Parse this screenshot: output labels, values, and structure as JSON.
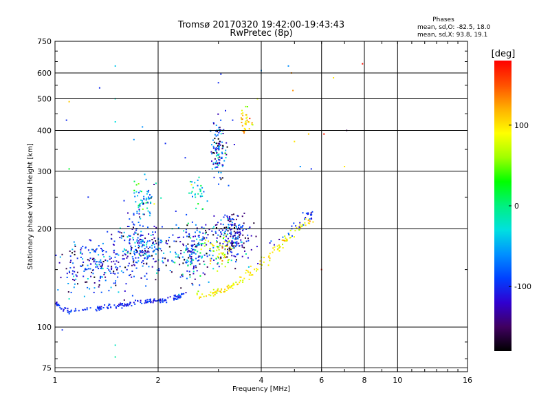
{
  "chart_data": {
    "type": "scatter",
    "title": "Tromsø 20170320 19:42:00-19:43:43",
    "subtitle": "RwPretec (8p)",
    "xlabel": "Frequency [MHz]",
    "ylabel": "Stationary phase Virtual Height [km]",
    "x_scale": "log",
    "y_scale": "log",
    "xlim": [
      1,
      16
    ],
    "ylim": [
      73,
      750
    ],
    "x_ticks": [
      1,
      2,
      4,
      6,
      8,
      10,
      16
    ],
    "x_tick_labels": [
      "1",
      "2",
      "4",
      "6",
      "8",
      "10",
      "16"
    ],
    "y_ticks": [
      75,
      100,
      200,
      300,
      400,
      500,
      600,
      750
    ],
    "y_tick_labels": [
      "75",
      "100",
      "200",
      "300",
      "400",
      "500",
      "600",
      "750"
    ],
    "grid": true,
    "stats": {
      "heading": "Phases",
      "line_o": "mean, sd,O: -82.5, 18.0",
      "line_x": "mean, sd,X:  93.8, 19.1"
    },
    "colorbar": {
      "label": "[deg]",
      "range": [
        -180,
        180
      ],
      "ticks": [
        100,
        0,
        -100
      ],
      "tick_labels": [
        "100",
        "0",
        "-100"
      ],
      "colors": [
        "#000000",
        "#400060",
        "#3000d0",
        "#0040ff",
        "#0090ff",
        "#00e0e0",
        "#00f080",
        "#00ff00",
        "#a0ff00",
        "#ffff00",
        "#ffb000",
        "#ff5000",
        "#ff0000"
      ]
    },
    "clusters": [
      {
        "name": "o-trace",
        "points": [
          [
            1.0,
            118
          ],
          [
            1.05,
            114
          ],
          [
            1.1,
            112
          ],
          [
            1.2,
            113
          ],
          [
            1.3,
            114
          ],
          [
            1.4,
            115
          ],
          [
            1.5,
            116
          ],
          [
            1.6,
            117
          ],
          [
            1.7,
            118
          ],
          [
            1.8,
            119
          ],
          [
            1.9,
            120
          ],
          [
            2.0,
            121
          ],
          [
            2.1,
            121
          ],
          [
            2.2,
            122
          ],
          [
            2.3,
            124
          ],
          [
            2.4,
            126
          ]
        ],
        "spread_x": 0.01,
        "spread_y": 0.008,
        "count": 170,
        "phase": -100,
        "phase_sd": 12
      },
      {
        "name": "x-trace",
        "points": [
          [
            2.6,
            124
          ],
          [
            2.8,
            126
          ],
          [
            3.0,
            128
          ],
          [
            3.2,
            132
          ],
          [
            3.4,
            136
          ],
          [
            3.6,
            142
          ],
          [
            3.8,
            148
          ],
          [
            4.0,
            155
          ],
          [
            4.3,
            165
          ],
          [
            4.6,
            180
          ],
          [
            5.0,
            195
          ],
          [
            5.3,
            205
          ],
          [
            5.6,
            215
          ]
        ],
        "spread_x": 0.012,
        "spread_y": 0.015,
        "count": 140,
        "phase": 95,
        "phase_sd": 15
      },
      {
        "name": "o-upper",
        "points": [
          [
            4.2,
            175
          ],
          [
            4.6,
            190
          ],
          [
            5.0,
            205
          ],
          [
            5.4,
            215
          ],
          [
            5.6,
            220
          ]
        ],
        "spread_x": 0.012,
        "spread_y": 0.02,
        "count": 30,
        "phase": -100,
        "phase_sd": 20
      },
      {
        "name": "spread-a",
        "points": [
          [
            1.3,
            155
          ]
        ],
        "spread_x": 0.14,
        "spread_y": 0.1,
        "count": 220,
        "phase": -100,
        "phase_sd": 40
      },
      {
        "name": "spread-b",
        "points": [
          [
            1.8,
            175
          ]
        ],
        "spread_x": 0.08,
        "spread_y": 0.09,
        "count": 230,
        "phase": -95,
        "phase_sd": 45
      },
      {
        "name": "spread-c",
        "points": [
          [
            1.8,
            245
          ]
        ],
        "spread_x": 0.05,
        "spread_y": 0.07,
        "count": 70,
        "phase": -60,
        "phase_sd": 50
      },
      {
        "name": "spread-d",
        "points": [
          [
            2.5,
            170
          ]
        ],
        "spread_x": 0.07,
        "spread_y": 0.1,
        "count": 200,
        "phase": -90,
        "phase_sd": 50
      },
      {
        "name": "spread-e",
        "points": [
          [
            3.3,
            190
          ]
        ],
        "spread_x": 0.06,
        "spread_y": 0.09,
        "count": 220,
        "phase": -110,
        "phase_sd": 45
      },
      {
        "name": "spread-f",
        "points": [
          [
            3.0,
            350
          ]
        ],
        "spread_x": 0.03,
        "spread_y": 0.1,
        "count": 120,
        "phase": -100,
        "phase_sd": 45
      },
      {
        "name": "spread-g",
        "points": [
          [
            2.6,
            260
          ]
        ],
        "spread_x": 0.04,
        "spread_y": 0.04,
        "count": 30,
        "phase": -40,
        "phase_sd": 40
      },
      {
        "name": "x-spread",
        "points": [
          [
            3.0,
            170
          ]
        ],
        "spread_x": 0.05,
        "spread_y": 0.06,
        "count": 60,
        "phase": 80,
        "phase_sd": 30
      },
      {
        "name": "x-high",
        "points": [
          [
            3.6,
            430
          ]
        ],
        "spread_x": 0.02,
        "spread_y": 0.04,
        "count": 35,
        "phase": 100,
        "phase_sd": 25
      }
    ],
    "sparse_points": [
      [
        1.05,
        98,
        -100
      ],
      [
        1.08,
        430,
        -100
      ],
      [
        1.1,
        490,
        110
      ],
      [
        1.1,
        305,
        20
      ],
      [
        1.25,
        250,
        -100
      ],
      [
        1.35,
        540,
        -100
      ],
      [
        1.5,
        630,
        -40
      ],
      [
        1.5,
        500,
        -20
      ],
      [
        1.5,
        425,
        -30
      ],
      [
        1.5,
        88,
        -20
      ],
      [
        1.5,
        81,
        -10
      ],
      [
        1.7,
        375,
        -60
      ],
      [
        1.8,
        410,
        -60
      ],
      [
        2.1,
        365,
        -100
      ],
      [
        2.4,
        330,
        -100
      ],
      [
        3.0,
        560,
        -100
      ],
      [
        3.05,
        595,
        -100
      ],
      [
        3.3,
        430,
        -100
      ],
      [
        3.9,
        500,
        80
      ],
      [
        4.0,
        610,
        -60
      ],
      [
        4.8,
        630,
        -60
      ],
      [
        4.9,
        600,
        130
      ],
      [
        4.95,
        530,
        130
      ],
      [
        5.0,
        370,
        100
      ],
      [
        5.2,
        310,
        -60
      ],
      [
        5.5,
        390,
        110
      ],
      [
        5.6,
        305,
        -100
      ],
      [
        6.0,
        150,
        170
      ],
      [
        6.1,
        390,
        170
      ],
      [
        6.5,
        580,
        100
      ],
      [
        7.0,
        310,
        100
      ],
      [
        7.1,
        400,
        -150
      ],
      [
        7.9,
        640,
        175
      ],
      [
        1.02,
        130,
        -60
      ],
      [
        1.1,
        122,
        -20
      ],
      [
        1.15,
        140,
        -40
      ],
      [
        2.2,
        200,
        -10
      ],
      [
        2.7,
        230,
        30
      ]
    ]
  }
}
